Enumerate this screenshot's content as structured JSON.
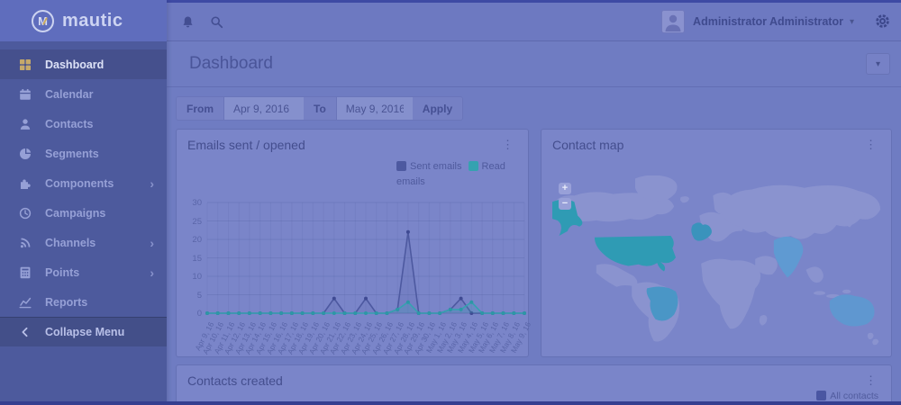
{
  "brand": {
    "name": "mautic",
    "logo_letter": "M"
  },
  "topbar": {
    "user_name": "Administrator Administrator"
  },
  "icons": {
    "chevron_right": "›",
    "caret_down": "▾",
    "ellipsis": "⋮",
    "plus": "+",
    "minus": "−"
  },
  "sidebar": {
    "items": [
      {
        "label": "Dashboard",
        "icon": "grid-icon",
        "active": true
      },
      {
        "label": "Calendar",
        "icon": "calendar-icon"
      },
      {
        "label": "Contacts",
        "icon": "user-icon"
      },
      {
        "label": "Segments",
        "icon": "pie-chart-icon"
      },
      {
        "label": "Components",
        "icon": "puzzle-icon",
        "has_submenu": true
      },
      {
        "label": "Campaigns",
        "icon": "clock-icon"
      },
      {
        "label": "Channels",
        "icon": "rss-icon",
        "has_submenu": true
      },
      {
        "label": "Points",
        "icon": "calculator-icon",
        "has_submenu": true
      },
      {
        "label": "Reports",
        "icon": "line-chart-icon"
      }
    ],
    "collapse_label": "Collapse Menu"
  },
  "page": {
    "title": "Dashboard"
  },
  "filter": {
    "from_label": "From",
    "from_value": "Apr 9, 2016",
    "to_label": "To",
    "to_value": "May 9, 2016",
    "apply_label": "Apply"
  },
  "panels": {
    "emails": {
      "title": "Emails sent / opened"
    },
    "map": {
      "title": "Contact map",
      "highlighted_countries": [
        "United States",
        "Alaska (US)",
        "Western Europe",
        "Brazil",
        "India",
        "Australia"
      ],
      "colors": {
        "land": "#8a93cf",
        "usa": "#2f9bb4",
        "europe_highlight": "#3a93bc",
        "brazil": "#4a96c6",
        "india": "#5f9ad2",
        "australia": "#5f97d0"
      }
    },
    "contacts": {
      "title": "Contacts created",
      "legend_label": "All contacts",
      "legend_color": "#4a56a2"
    }
  },
  "chart_data": {
    "type": "line",
    "title": "Emails sent / opened",
    "categories": [
      "Apr 9, 16",
      "Apr 10, 16",
      "Apr 11, 16",
      "Apr 12, 16",
      "Apr 13, 16",
      "Apr 14, 16",
      "Apr 15, 16",
      "Apr 16, 16",
      "Apr 17, 16",
      "Apr 18, 16",
      "Apr 19, 16",
      "Apr 20, 16",
      "Apr 21, 16",
      "Apr 22, 16",
      "Apr 23, 16",
      "Apr 24, 16",
      "Apr 25, 16",
      "Apr 26, 16",
      "Apr 27, 16",
      "Apr 28, 16",
      "Apr 29, 16",
      "Apr 30, 16",
      "May 1, 16",
      "May 2, 16",
      "May 3, 16",
      "May 4, 16",
      "May 5, 16",
      "May 6, 16",
      "May 7, 16",
      "May 8, 16",
      "May 9, 16"
    ],
    "series": [
      {
        "name": "Sent emails",
        "color": "#4d59a0",
        "dot_color": "#3f4a93",
        "fill_opacity": 0.12,
        "values": [
          0,
          0,
          0,
          0,
          0,
          0,
          0,
          0,
          0,
          0,
          0,
          0,
          4,
          0,
          0,
          4,
          0,
          0,
          1,
          22,
          0,
          0,
          0,
          1,
          4,
          0,
          0,
          0,
          0,
          0,
          0
        ]
      },
      {
        "name": "Read emails",
        "color": "#35a2b0",
        "dot_color": "#2d97a6",
        "fill_opacity": 0.22,
        "values": [
          0,
          0,
          0,
          0,
          0,
          0,
          0,
          0,
          0,
          0,
          0,
          0,
          0,
          0,
          0,
          0,
          0,
          0,
          1,
          3,
          0,
          0,
          0,
          1,
          1,
          3,
          0,
          0,
          0,
          0,
          0
        ]
      }
    ],
    "ylim": [
      0,
      30
    ],
    "ytick_step": 5,
    "grid": true,
    "legend_position": "top-right"
  }
}
